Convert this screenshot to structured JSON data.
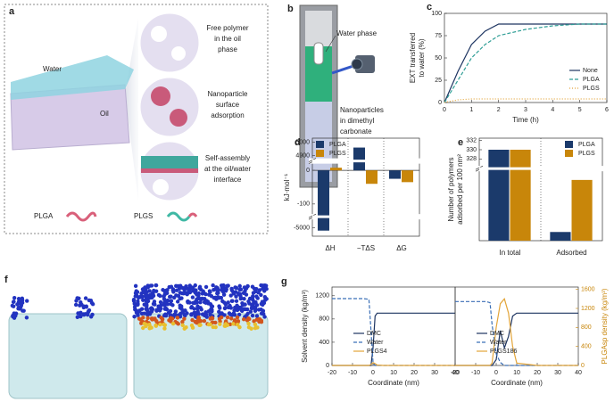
{
  "panels": {
    "a": {
      "label": "a",
      "water": "Water",
      "oil": "Oil",
      "callouts": [
        [
          "Free polymer",
          "in the oil",
          "phase"
        ],
        [
          "Nanoparticle",
          "surface",
          "adsorption"
        ],
        [
          "Self-assembly",
          "at the oil/water",
          "interface"
        ]
      ],
      "legend": [
        "PLGA",
        "PLGS"
      ]
    },
    "b": {
      "label": "b",
      "water_phase": "Water phase",
      "nanoparticles": [
        "Nanoparticles",
        "in dimethyl",
        "carbonate"
      ]
    },
    "f": {
      "label": "f"
    }
  },
  "chart_data": [
    {
      "label": "c",
      "type": "line",
      "x_label": "Time (h)",
      "y_label": [
        "EXT transferred",
        "to water (%)"
      ],
      "x": [
        0,
        0.5,
        1,
        1.5,
        2,
        3,
        4,
        5,
        6
      ],
      "xlim": [
        0,
        6
      ],
      "xticks": [
        0,
        1,
        2,
        3,
        4,
        5,
        6
      ],
      "ylim": [
        0,
        100
      ],
      "yticks": [
        0,
        25,
        50,
        75,
        100
      ],
      "legend": "lower right",
      "series": [
        {
          "name": "None",
          "color": "#1d3461",
          "style": "solid",
          "values": [
            0,
            35,
            65,
            80,
            88,
            88,
            88,
            88,
            88
          ]
        },
        {
          "name": "PLGA",
          "color": "#2f9e96",
          "style": "dashed",
          "values": [
            0,
            25,
            50,
            65,
            75,
            82,
            86,
            88,
            88
          ]
        },
        {
          "name": "PLGS",
          "color": "#e3a53a",
          "style": "dotted",
          "values": [
            0,
            3,
            4,
            4,
            4,
            4,
            4,
            4,
            4
          ]
        }
      ]
    },
    {
      "label": "d",
      "type": "bar",
      "y_label": "kJ·mol⁻¹",
      "categories": [
        "ΔH",
        "−TΔS",
        "ΔG"
      ],
      "y_segments": [
        [
          -5030,
          -4970
        ],
        [
          -130,
          20
        ],
        [
          4880,
          5030
        ]
      ],
      "yticks": [
        -5000,
        -100,
        0,
        4900,
        5000
      ],
      "legend": "upper left",
      "series": [
        {
          "name": "PLGA",
          "color": "#1b3a6b",
          "values": [
            -5010,
            4960,
            -25
          ]
        },
        {
          "name": "PLGS",
          "color": "#c8860a",
          "values": [
            8,
            -40,
            -35
          ]
        }
      ]
    },
    {
      "label": "e",
      "type": "bar",
      "y_label": [
        "Number of polymers",
        "adsorbed per 100 nm²"
      ],
      "categories": [
        "In total",
        "Adsorbed"
      ],
      "y_segments": [
        [
          0,
          8
        ],
        [
          326.5,
          332.5
        ]
      ],
      "yticks": [
        328,
        330,
        332
      ],
      "legend": "upper right",
      "series": [
        {
          "name": "PLGA",
          "color": "#1b3a6b",
          "values": [
            330,
            1
          ]
        },
        {
          "name": "PLGS",
          "color": "#c8860a",
          "values": [
            330,
            7
          ]
        }
      ]
    },
    {
      "label": "g",
      "type": "line",
      "x_label": "Coordinate (nm)",
      "y_label": "Solvent density (kg/m³)",
      "x": [
        -20,
        -15,
        -10,
        -5,
        -2,
        -1,
        0,
        1,
        2,
        5,
        10,
        20,
        30,
        40
      ],
      "xlim": [
        -20,
        40
      ],
      "xticks": [
        -20,
        -10,
        0,
        10,
        20,
        30,
        40
      ],
      "ylim": [
        0,
        1350
      ],
      "yticks": [
        0,
        400,
        800,
        1200
      ],
      "y2lim": [
        0,
        1650
      ],
      "legend": "lower left",
      "series": [
        {
          "name": "DMC",
          "color": "#1d3461",
          "style": "solid",
          "values": [
            0,
            0,
            0,
            0,
            0,
            0,
            300,
            850,
            900,
            900,
            900,
            900,
            900,
            900
          ]
        },
        {
          "name": "Water",
          "color": "#3b6fb6",
          "style": "dashed",
          "values": [
            1150,
            1150,
            1150,
            1150,
            1140,
            600,
            50,
            0,
            0,
            0,
            0,
            0,
            0,
            0
          ]
        },
        {
          "name": "PLGS4",
          "color": "#e3a53a",
          "style": "solid",
          "axis": "y2",
          "values": [
            0,
            0,
            0,
            0,
            0,
            20,
            60,
            40,
            10,
            0,
            0,
            0,
            0,
            0
          ]
        }
      ]
    },
    {
      "type": "line",
      "x_label": "Coordinate (nm)",
      "y2_label": "PLGAsp density (kg/m³)",
      "x": [
        -20,
        -10,
        -5,
        -3,
        -2,
        0,
        2,
        4,
        6,
        8,
        10,
        20,
        30,
        40
      ],
      "xlim": [
        -20,
        40
      ],
      "xticks": [
        -20,
        -10,
        0,
        10,
        20,
        30,
        40
      ],
      "ylim": [
        0,
        1350
      ],
      "y2lim": [
        0,
        1650
      ],
      "y2ticks": [
        0,
        400,
        800,
        1200,
        1600
      ],
      "legend": "lower left",
      "series": [
        {
          "name": "DMC",
          "color": "#1d3461",
          "style": "solid",
          "values": [
            0,
            0,
            0,
            0,
            0,
            100,
            600,
            300,
            500,
            850,
            900,
            900,
            900,
            900
          ]
        },
        {
          "name": "Water",
          "color": "#3b6fb6",
          "style": "dashed",
          "values": [
            1100,
            1100,
            1100,
            1080,
            700,
            200,
            50,
            0,
            0,
            0,
            0,
            0,
            0,
            0
          ]
        },
        {
          "name": "PLGS186",
          "color": "#e3a53a",
          "style": "solid",
          "axis": "y2",
          "values": [
            0,
            0,
            0,
            0,
            50,
            800,
            1300,
            1400,
            1100,
            400,
            50,
            0,
            0,
            0
          ]
        }
      ]
    }
  ]
}
